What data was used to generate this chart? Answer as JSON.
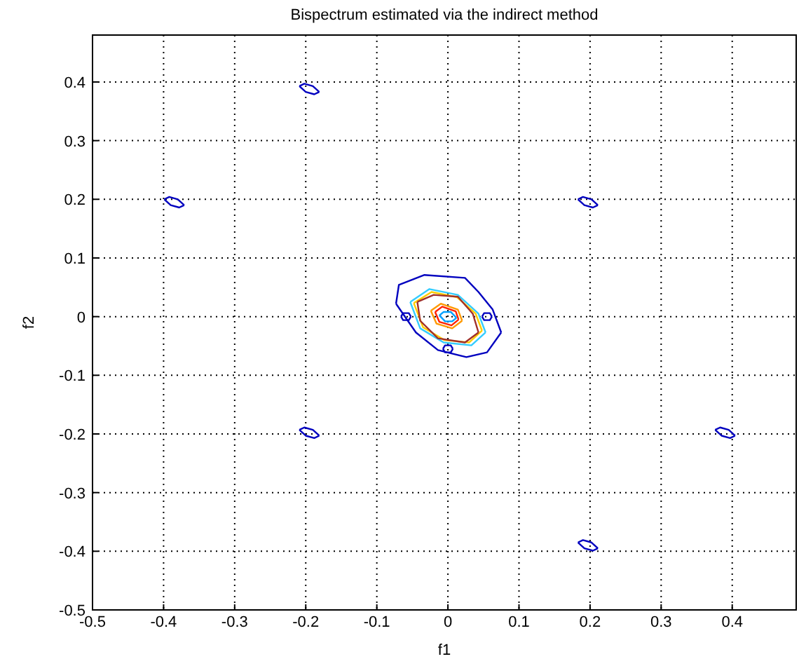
{
  "chart_data": {
    "type": "line",
    "title": "Bispectrum estimated via the indirect method",
    "xlabel": "f1",
    "ylabel": "f2",
    "xlim": [
      -0.5,
      0.49
    ],
    "ylim": [
      -0.5,
      0.48
    ],
    "xticks": [
      -0.5,
      -0.4,
      -0.3,
      -0.2,
      -0.1,
      0,
      0.1,
      0.2,
      0.3,
      0.4
    ],
    "yticks": [
      -0.5,
      -0.4,
      -0.3,
      -0.2,
      -0.1,
      0,
      0.1,
      0.2,
      0.3,
      0.4
    ],
    "grid": true,
    "marker": "none",
    "line_style": "solid",
    "series": [
      {
        "color": "#0000bf",
        "x": [
          -0.209,
          -0.202,
          -0.19,
          -0.181
        ],
        "values": [
          0.393,
          0.397,
          0.393,
          0.383
        ]
      },
      {
        "color": "#0000bf",
        "x": [
          -0.209,
          -0.2,
          -0.188,
          -0.181
        ],
        "values": [
          0.393,
          0.383,
          0.379,
          0.383
        ]
      },
      {
        "color": "#0000bf",
        "x": [
          -0.399,
          -0.392,
          -0.38,
          -0.371
        ],
        "values": [
          0.2,
          0.204,
          0.2,
          0.19
        ]
      },
      {
        "color": "#0000bf",
        "x": [
          -0.399,
          -0.39,
          -0.378,
          -0.371
        ],
        "values": [
          0.2,
          0.19,
          0.186,
          0.19
        ]
      },
      {
        "color": "#0000bf",
        "x": [
          0.183,
          0.19,
          0.202,
          0.211
        ],
        "values": [
          0.2,
          0.204,
          0.2,
          0.19
        ]
      },
      {
        "color": "#0000bf",
        "x": [
          0.183,
          0.192,
          0.204,
          0.211
        ],
        "values": [
          0.2,
          0.19,
          0.186,
          0.19
        ]
      },
      {
        "color": "#0000bf",
        "x": [
          0.183,
          0.19,
          0.202,
          0.211
        ],
        "values": [
          -0.385,
          -0.381,
          -0.385,
          -0.395
        ]
      },
      {
        "color": "#0000bf",
        "x": [
          0.183,
          0.192,
          0.204,
          0.211
        ],
        "values": [
          -0.385,
          -0.395,
          -0.399,
          -0.395
        ]
      },
      {
        "color": "#0000bf",
        "x": [
          0.376,
          0.383,
          0.395,
          0.404
        ],
        "values": [
          -0.193,
          -0.189,
          -0.193,
          -0.203
        ]
      },
      {
        "color": "#0000bf",
        "x": [
          0.376,
          0.385,
          0.397,
          0.404
        ],
        "values": [
          -0.193,
          -0.203,
          -0.207,
          -0.203
        ]
      },
      {
        "color": "#0000bf",
        "x": [
          -0.209,
          -0.202,
          -0.19,
          -0.181
        ],
        "values": [
          -0.193,
          -0.189,
          -0.193,
          -0.203
        ]
      },
      {
        "color": "#0000bf",
        "x": [
          -0.209,
          -0.2,
          -0.188,
          -0.181
        ],
        "values": [
          -0.193,
          -0.203,
          -0.207,
          -0.203
        ]
      },
      {
        "color": "#0000bf",
        "x": [
          -0.073,
          -0.069,
          -0.033,
          0.024,
          0.043,
          0.063,
          0.075
        ],
        "values": [
          0.022,
          0.054,
          0.071,
          0.066,
          0.042,
          0.012,
          -0.027
        ]
      },
      {
        "color": "#0000bf",
        "x": [
          -0.073,
          -0.045,
          -0.014,
          0.026,
          0.055,
          0.075
        ],
        "values": [
          0.022,
          -0.027,
          -0.057,
          -0.069,
          -0.061,
          -0.027
        ]
      },
      {
        "color": "#0000bf",
        "x": [
          -0.066,
          -0.063,
          -0.055,
          -0.052
        ],
        "values": [
          0,
          0.006,
          0.006,
          0
        ]
      },
      {
        "color": "#0000bf",
        "x": [
          -0.066,
          -0.063,
          -0.055,
          -0.052
        ],
        "values": [
          0,
          -0.006,
          -0.006,
          0
        ]
      },
      {
        "color": "#0000bf",
        "x": [
          0.048,
          0.051,
          0.059,
          0.062
        ],
        "values": [
          0,
          0.006,
          0.006,
          0
        ]
      },
      {
        "color": "#0000bf",
        "x": [
          0.048,
          0.051,
          0.059,
          0.062
        ],
        "values": [
          0,
          -0.006,
          -0.006,
          0
        ]
      },
      {
        "color": "#0000bf",
        "x": [
          -0.007,
          -0.004,
          0.004,
          0.007
        ],
        "values": [
          -0.055,
          -0.049,
          -0.049,
          -0.055
        ]
      },
      {
        "color": "#0000bf",
        "x": [
          -0.007,
          -0.004,
          0.004,
          0.007
        ],
        "values": [
          -0.055,
          -0.061,
          -0.061,
          -0.055
        ]
      },
      {
        "color": "#33ccff",
        "x": [
          -0.053,
          -0.026,
          0.014,
          0.043,
          0.053
        ],
        "values": [
          0.025,
          0.047,
          0.037,
          0.005,
          -0.027
        ]
      },
      {
        "color": "#33ccff",
        "x": [
          -0.053,
          -0.039,
          -0.006,
          0.033,
          0.053
        ],
        "values": [
          0.025,
          -0.02,
          -0.044,
          -0.049,
          -0.027
        ]
      },
      {
        "color": "#ffcc00",
        "x": [
          -0.048,
          -0.023,
          0.013,
          0.039,
          0.048
        ],
        "values": [
          0.023,
          0.042,
          0.033,
          0.005,
          -0.024
        ]
      },
      {
        "color": "#ffcc00",
        "x": [
          -0.048,
          -0.035,
          -0.005,
          0.03,
          0.048
        ],
        "values": [
          0.023,
          -0.018,
          -0.04,
          -0.044,
          -0.024
        ]
      },
      {
        "color": "#a0302a",
        "x": [
          -0.043,
          -0.02,
          0.014,
          0.035,
          0.043
        ],
        "values": [
          0.025,
          0.037,
          0.034,
          0.005,
          -0.027
        ]
      },
      {
        "color": "#a0302a",
        "x": [
          -0.043,
          -0.039,
          -0.014,
          0.024,
          0.043
        ],
        "values": [
          0.025,
          -0.007,
          -0.037,
          -0.044,
          -0.027
        ]
      },
      {
        "color": "#ff9900",
        "x": [
          -0.024,
          -0.01,
          0.014,
          0.02
        ],
        "values": [
          0.01,
          0.022,
          0.012,
          -0.007
        ]
      },
      {
        "color": "#ff9900",
        "x": [
          -0.024,
          -0.016,
          0.006,
          0.02
        ],
        "values": [
          0.01,
          -0.012,
          -0.02,
          -0.007
        ]
      },
      {
        "color": "#ff2000",
        "x": [
          -0.018,
          -0.008,
          0.011,
          0.015
        ],
        "values": [
          0.008,
          0.017,
          0.009,
          -0.005
        ]
      },
      {
        "color": "#ff2000",
        "x": [
          -0.018,
          -0.012,
          0.005,
          0.015
        ],
        "values": [
          0.008,
          -0.009,
          -0.015,
          -0.005
        ]
      },
      {
        "color": "#00a0ff",
        "x": [
          -0.012,
          -0.006,
          0.004,
          0.012
        ],
        "values": [
          0.002,
          0.008,
          0.008,
          -0.002
        ]
      },
      {
        "color": "#00a0ff",
        "x": [
          -0.012,
          -0.004,
          0.006,
          0.012
        ],
        "values": [
          0.002,
          -0.008,
          -0.008,
          -0.002
        ]
      }
    ]
  }
}
